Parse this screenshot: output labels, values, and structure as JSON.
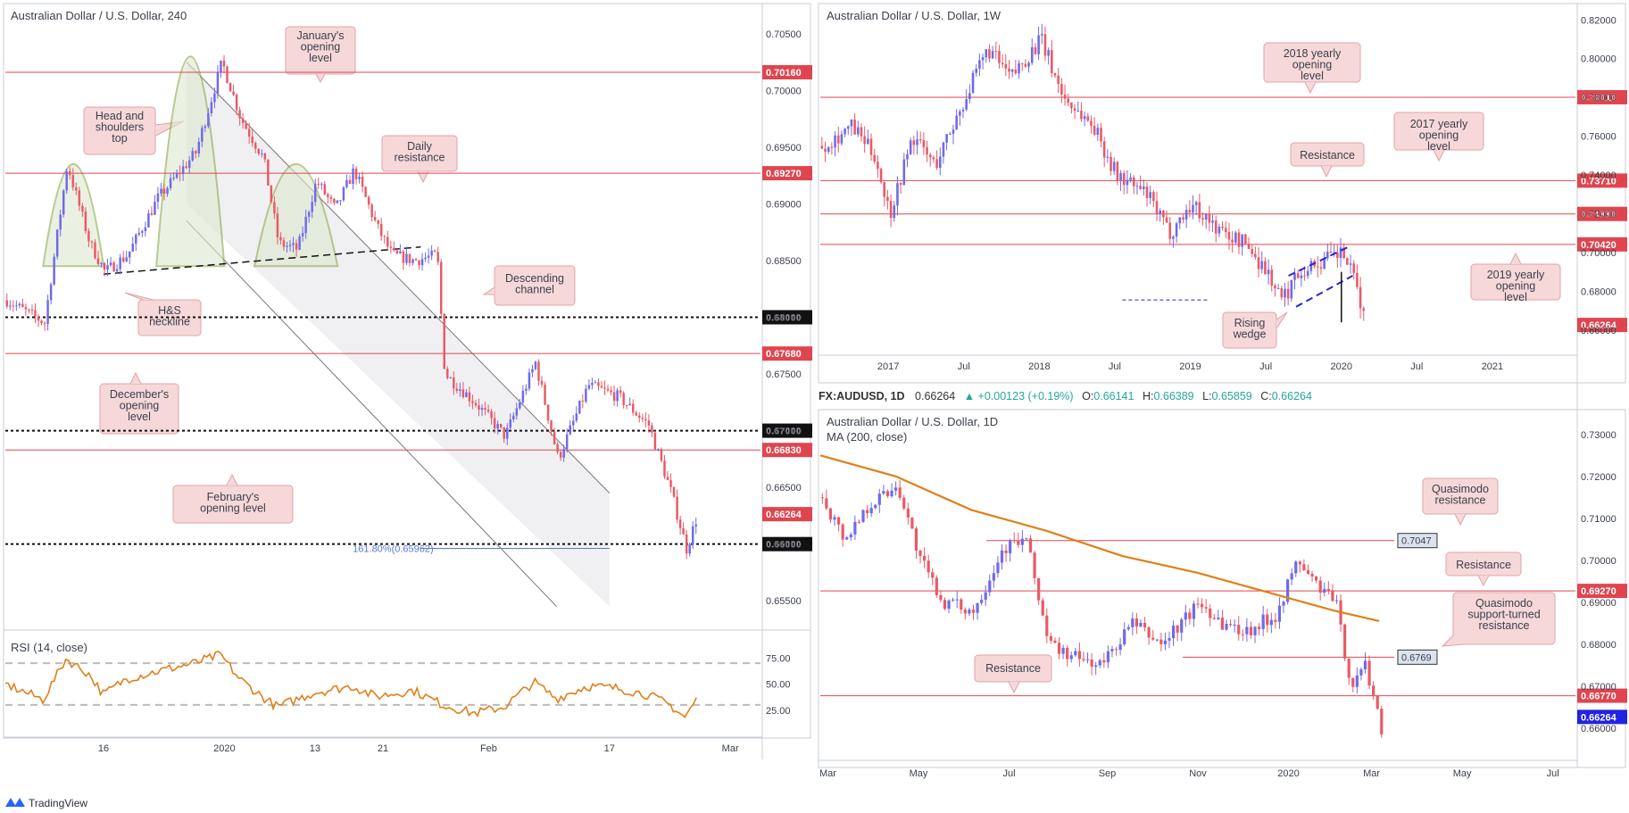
{
  "colors": {
    "bull": "#6f6ae8",
    "bear": "#e85a66",
    "level_red": "#e0454f",
    "callout_fill": "#f6d8d9",
    "callout_stroke": "#e0a3a6",
    "rsi": "#e07f1a",
    "ma": "#e07f1a",
    "fib": "#5a78d6",
    "wedge": "#2424d6",
    "pattern": "#8aa64a"
  },
  "chart_data": [
    {
      "id": "h4",
      "type": "candlestick",
      "title": "Australian Dollar / U.S. Dollar, 240",
      "ylim": [
        0.6525,
        0.7075
      ],
      "y_ticks": [
        "0.70500",
        "0.70000",
        "0.69500",
        "0.69000",
        "0.68500",
        "0.68000",
        "0.67500",
        "0.67000",
        "0.66500",
        "0.66000",
        "0.65500"
      ],
      "y_tick_values": [
        0.705,
        0.7,
        0.695,
        0.69,
        0.685,
        0.68,
        0.675,
        0.67,
        0.665,
        0.66,
        0.655
      ],
      "x_ticks": [
        "16",
        "2020",
        "13",
        "21",
        "Feb",
        "17",
        "Mar"
      ],
      "x_tick_at": [
        0.13,
        0.29,
        0.41,
        0.5,
        0.64,
        0.8,
        0.96
      ],
      "levels": [
        {
          "label": "0.70160",
          "value": 0.7016,
          "style": "red"
        },
        {
          "label": "0.69270",
          "value": 0.6927,
          "style": "red"
        },
        {
          "label": "0.68000",
          "value": 0.68,
          "style": "dotted"
        },
        {
          "label": "0.67680",
          "value": 0.6768,
          "style": "red"
        },
        {
          "label": "0.67000",
          "value": 0.67,
          "style": "dotted"
        },
        {
          "label": "0.66830",
          "value": 0.6683,
          "style": "red"
        },
        {
          "label": "0.66264",
          "value": 0.66264,
          "style": "price"
        },
        {
          "label": "0.66000",
          "value": 0.66,
          "style": "dotted"
        }
      ],
      "fib_label": "161.80%(0.65962)",
      "fib_value": 0.65962,
      "callouts": [
        "January's opening level",
        "Head and shoulders top",
        "Daily resistance",
        "Descending channel",
        "H&S neckline",
        "December's opening level",
        "February's opening level"
      ],
      "path": [
        [
          0,
          0.6815
        ],
        [
          0.05,
          0.6795
        ],
        [
          0.08,
          0.6935
        ],
        [
          0.11,
          0.6865
        ],
        [
          0.13,
          0.684
        ],
        [
          0.16,
          0.6855
        ],
        [
          0.2,
          0.6905
        ],
        [
          0.25,
          0.6945
        ],
        [
          0.285,
          0.7025
        ],
        [
          0.31,
          0.6975
        ],
        [
          0.34,
          0.694
        ],
        [
          0.36,
          0.6865
        ],
        [
          0.385,
          0.686
        ],
        [
          0.41,
          0.692
        ],
        [
          0.435,
          0.6895
        ],
        [
          0.46,
          0.693
        ],
        [
          0.49,
          0.688
        ],
        [
          0.51,
          0.6855
        ],
        [
          0.54,
          0.685
        ],
        [
          0.57,
          0.6855
        ],
        [
          0.58,
          0.675
        ],
        [
          0.62,
          0.6725
        ],
        [
          0.66,
          0.6695
        ],
        [
          0.7,
          0.676
        ],
        [
          0.73,
          0.6675
        ],
        [
          0.77,
          0.674
        ],
        [
          0.81,
          0.673
        ],
        [
          0.85,
          0.6705
        ],
        [
          0.88,
          0.6645
        ],
        [
          0.9,
          0.6596
        ],
        [
          0.915,
          0.6626
        ]
      ]
    },
    {
      "id": "rsi",
      "type": "line",
      "title": "RSI (14, close)",
      "ylim": [
        0,
        100
      ],
      "y_ticks": [
        "75.00",
        "50.00",
        "25.00"
      ],
      "y_tick_values": [
        75,
        50,
        25
      ],
      "bands": [
        70,
        30
      ],
      "path": [
        [
          0,
          50
        ],
        [
          0.05,
          35
        ],
        [
          0.08,
          74
        ],
        [
          0.11,
          60
        ],
        [
          0.13,
          40
        ],
        [
          0.16,
          55
        ],
        [
          0.2,
          62
        ],
        [
          0.25,
          70
        ],
        [
          0.285,
          78
        ],
        [
          0.31,
          55
        ],
        [
          0.34,
          38
        ],
        [
          0.36,
          28
        ],
        [
          0.41,
          42
        ],
        [
          0.46,
          48
        ],
        [
          0.49,
          38
        ],
        [
          0.54,
          44
        ],
        [
          0.58,
          30
        ],
        [
          0.62,
          22
        ],
        [
          0.66,
          28
        ],
        [
          0.7,
          52
        ],
        [
          0.73,
          36
        ],
        [
          0.77,
          48
        ],
        [
          0.81,
          46
        ],
        [
          0.85,
          40
        ],
        [
          0.88,
          30
        ],
        [
          0.9,
          18
        ],
        [
          0.915,
          35
        ]
      ]
    },
    {
      "id": "w1",
      "type": "candlestick",
      "title": "Australian Dollar / U.S. Dollar, 1W",
      "ylim": [
        0.6475,
        0.8275
      ],
      "y_ticks": [
        "0.82000",
        "0.80000",
        "0.78000",
        "0.76000",
        "0.74000",
        "0.72000",
        "0.70000",
        "0.68000",
        "0.66000"
      ],
      "y_tick_values": [
        0.82,
        0.8,
        0.78,
        0.76,
        0.74,
        0.72,
        0.7,
        0.68,
        0.66
      ],
      "x_ticks": [
        "2017",
        "Jul",
        "2018",
        "Jul",
        "2019",
        "Jul",
        "2020",
        "Jul",
        "2021"
      ],
      "x_tick_at": [
        0.09,
        0.19,
        0.29,
        0.39,
        0.49,
        0.59,
        0.69,
        0.79,
        0.89
      ],
      "levels": [
        {
          "label": "0.78010",
          "value": 0.7801,
          "style": "red"
        },
        {
          "label": "0.73710",
          "value": 0.7371,
          "style": "red"
        },
        {
          "label": "0.71990",
          "value": 0.7199,
          "style": "red"
        },
        {
          "label": "0.70420",
          "value": 0.7042,
          "style": "red"
        },
        {
          "label": "0.66264",
          "value": 0.66264,
          "style": "price"
        }
      ],
      "callouts": [
        "2018 yearly opening level",
        "2017 yearly opening level",
        "Resistance",
        "2019 yearly opening level",
        "Rising wedge"
      ],
      "path": [
        [
          0,
          0.755
        ],
        [
          0.04,
          0.765
        ],
        [
          0.07,
          0.75
        ],
        [
          0.09,
          0.72
        ],
        [
          0.12,
          0.76
        ],
        [
          0.15,
          0.745
        ],
        [
          0.19,
          0.78
        ],
        [
          0.22,
          0.805
        ],
        [
          0.25,
          0.79
        ],
        [
          0.29,
          0.81
        ],
        [
          0.32,
          0.78
        ],
        [
          0.36,
          0.765
        ],
        [
          0.39,
          0.74
        ],
        [
          0.43,
          0.73
        ],
        [
          0.46,
          0.71
        ],
        [
          0.49,
          0.725
        ],
        [
          0.53,
          0.71
        ],
        [
          0.56,
          0.705
        ],
        [
          0.59,
          0.69
        ],
        [
          0.61,
          0.675
        ],
        [
          0.63,
          0.69
        ],
        [
          0.66,
          0.695
        ],
        [
          0.69,
          0.7
        ],
        [
          0.71,
          0.68
        ],
        [
          0.72,
          0.6626
        ]
      ]
    },
    {
      "id": "d1",
      "type": "candlestick",
      "title": "Australian Dollar / U.S. Dollar, 1D",
      "ma_label": "MA (200, close)",
      "ylim": [
        0.6525,
        0.7355
      ],
      "y_ticks": [
        "0.73000",
        "0.72000",
        "0.71000",
        "0.70000",
        "0.69000",
        "0.68000",
        "0.67000",
        "0.66000"
      ],
      "y_tick_values": [
        0.73,
        0.72,
        0.71,
        0.7,
        0.69,
        0.68,
        0.67,
        0.66
      ],
      "x_ticks": [
        "Mar",
        "May",
        "Jul",
        "Sep",
        "Nov",
        "2020",
        "Mar",
        "May",
        "Jul"
      ],
      "x_tick_at": [
        0.01,
        0.13,
        0.25,
        0.38,
        0.5,
        0.62,
        0.73,
        0.85,
        0.97
      ],
      "levels": [
        {
          "label": "0.69270",
          "value": 0.6927,
          "style": "red"
        },
        {
          "label": "0.66770",
          "value": 0.6677,
          "style": "red"
        },
        {
          "label": "0.66264",
          "value": 0.66264,
          "style": "price_blue"
        }
      ],
      "grey_levels": [
        {
          "label": "0.7047",
          "value": 0.7047
        },
        {
          "label": "0.6769",
          "value": 0.6769
        }
      ],
      "callouts": [
        "Quasimodo resistance",
        "Resistance",
        "Quasimodo support-turned resistance",
        "Resistance"
      ],
      "path": [
        [
          0,
          0.715
        ],
        [
          0.03,
          0.705
        ],
        [
          0.06,
          0.713
        ],
        [
          0.1,
          0.718
        ],
        [
          0.13,
          0.7
        ],
        [
          0.16,
          0.69
        ],
        [
          0.2,
          0.688
        ],
        [
          0.24,
          0.703
        ],
        [
          0.27,
          0.705
        ],
        [
          0.3,
          0.68
        ],
        [
          0.33,
          0.677
        ],
        [
          0.37,
          0.675
        ],
        [
          0.41,
          0.685
        ],
        [
          0.45,
          0.68
        ],
        [
          0.5,
          0.69
        ],
        [
          0.53,
          0.685
        ],
        [
          0.56,
          0.683
        ],
        [
          0.6,
          0.687
        ],
        [
          0.63,
          0.7
        ],
        [
          0.65,
          0.695
        ],
        [
          0.68,
          0.69
        ],
        [
          0.7,
          0.67
        ],
        [
          0.72,
          0.675
        ],
        [
          0.74,
          0.66
        ]
      ],
      "ma_path": [
        [
          0,
          0.725
        ],
        [
          0.1,
          0.72
        ],
        [
          0.2,
          0.712
        ],
        [
          0.3,
          0.707
        ],
        [
          0.4,
          0.701
        ],
        [
          0.5,
          0.697
        ],
        [
          0.6,
          0.692
        ],
        [
          0.68,
          0.688
        ],
        [
          0.74,
          0.6855
        ]
      ]
    }
  ],
  "ohlc_bar": {
    "symbol": "FX:AUDUSD, 1D",
    "price": "0.66264",
    "change": "▲ +0.00123 (+0.19%)",
    "o_label": "O:",
    "o": "0.66141",
    "h_label": "H:",
    "h": "0.66389",
    "l_label": "L:",
    "l": "0.65859",
    "c_label": "C:",
    "c": "0.66264"
  },
  "branding": {
    "name": "TradingView"
  }
}
